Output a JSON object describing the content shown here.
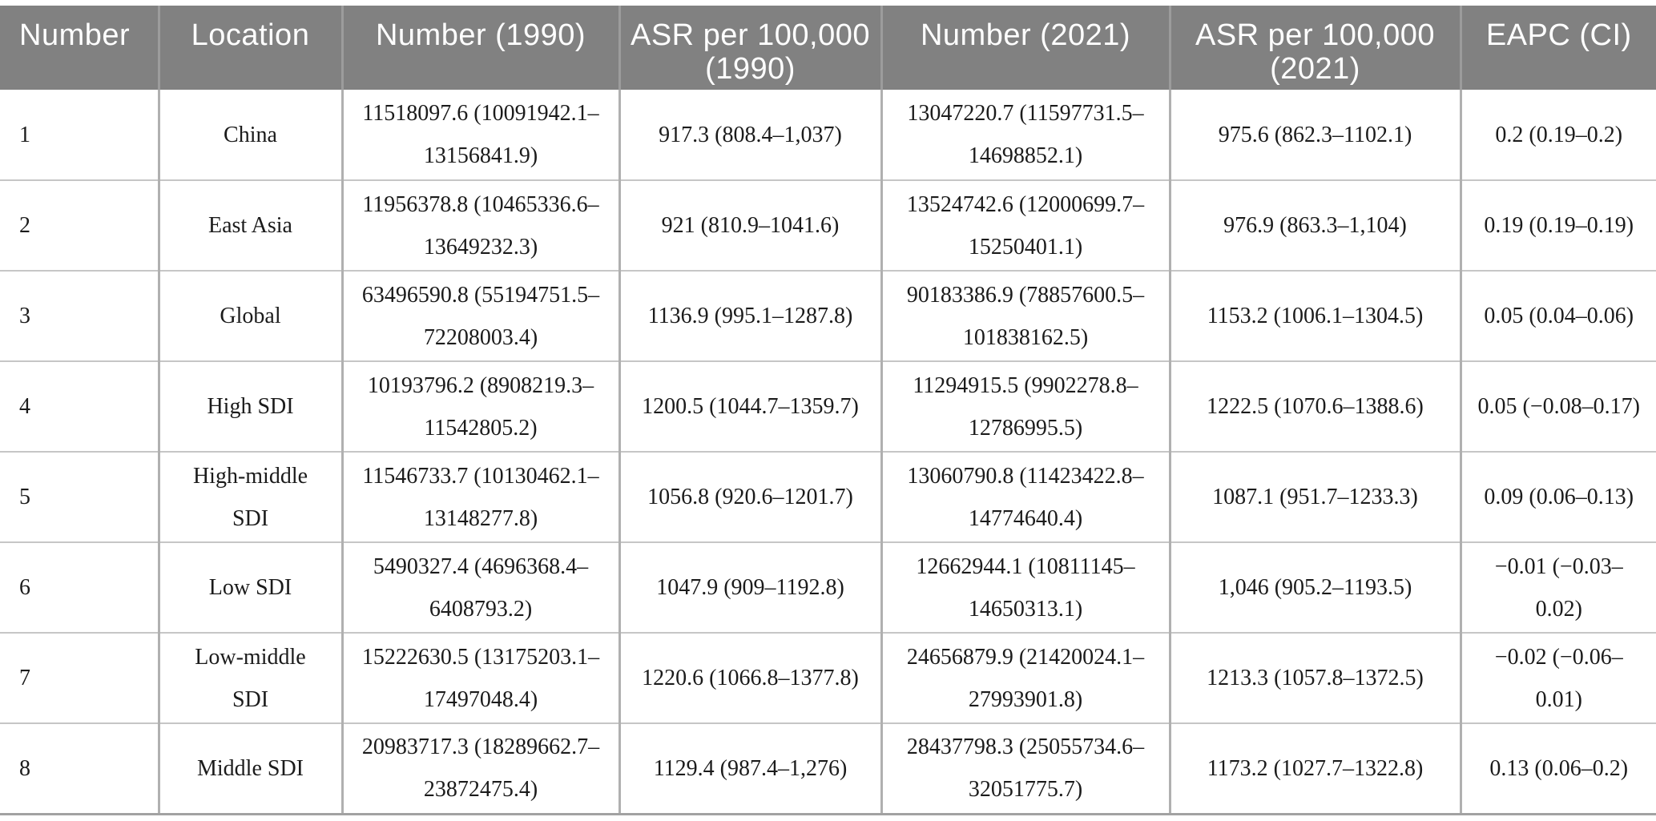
{
  "colors": {
    "header_bg": "#818181",
    "header_text": "#ffffff",
    "body_text": "#1b1b1b",
    "header_divider": "#9c9c9c",
    "column_divider": "#b0b0b0",
    "row_divider": "#c6c6c6",
    "bottom_rule": "#a2a2a2"
  },
  "table": {
    "columns": [
      {
        "key": "number",
        "label": "Number"
      },
      {
        "key": "location",
        "label": "Location"
      },
      {
        "key": "number_1990",
        "label": "Number (1990)"
      },
      {
        "key": "asr_1990",
        "label": "ASR per 100,000 (1990)"
      },
      {
        "key": "number_2021",
        "label": "Number (2021)"
      },
      {
        "key": "asr_2021",
        "label": "ASR per 100,000 (2021)"
      },
      {
        "key": "eapc",
        "label": "EAPC (CI)"
      }
    ],
    "rows": [
      {
        "number": "1",
        "location": "China",
        "number_1990": "11518097.6 (10091942.1–13156841.9)",
        "asr_1990": "917.3 (808.4–1,037)",
        "number_2021": "13047220.7 (11597731.5–14698852.1)",
        "asr_2021": "975.6 (862.3–1102.1)",
        "eapc": "0.2 (0.19–0.2)"
      },
      {
        "number": "2",
        "location": "East Asia",
        "number_1990": "11956378.8 (10465336.6–13649232.3)",
        "asr_1990": "921 (810.9–1041.6)",
        "number_2021": "13524742.6 (12000699.7–15250401.1)",
        "asr_2021": "976.9 (863.3–1,104)",
        "eapc": "0.19 (0.19–0.19)"
      },
      {
        "number": "3",
        "location": "Global",
        "number_1990": "63496590.8 (55194751.5–72208003.4)",
        "asr_1990": "1136.9 (995.1–1287.8)",
        "number_2021": "90183386.9 (78857600.5–101838162.5)",
        "asr_2021": "1153.2 (1006.1–1304.5)",
        "eapc": "0.05 (0.04–0.06)"
      },
      {
        "number": "4",
        "location": "High SDI",
        "number_1990": "10193796.2 (8908219.3–11542805.2)",
        "asr_1990": "1200.5 (1044.7–1359.7)",
        "number_2021": "11294915.5 (9902278.8–12786995.5)",
        "asr_2021": "1222.5 (1070.6–1388.6)",
        "eapc": "0.05 (−0.08–0.17)"
      },
      {
        "number": "5",
        "location": "High-middle SDI",
        "number_1990": "11546733.7 (10130462.1–13148277.8)",
        "asr_1990": "1056.8 (920.6–1201.7)",
        "number_2021": "13060790.8 (11423422.8–14774640.4)",
        "asr_2021": "1087.1 (951.7–1233.3)",
        "eapc": "0.09 (0.06–0.13)"
      },
      {
        "number": "6",
        "location": "Low SDI",
        "number_1990": "5490327.4 (4696368.4–6408793.2)",
        "asr_1990": "1047.9 (909–1192.8)",
        "number_2021": "12662944.1 (10811145–14650313.1)",
        "asr_2021": "1,046 (905.2–1193.5)",
        "eapc": "−0.01 (−0.03–0.02)"
      },
      {
        "number": "7",
        "location": "Low-middle SDI",
        "number_1990": "15222630.5 (13175203.1–17497048.4)",
        "asr_1990": "1220.6 (1066.8–1377.8)",
        "number_2021": "24656879.9 (21420024.1–27993901.8)",
        "asr_2021": "1213.3 (1057.8–1372.5)",
        "eapc": "−0.02 (−0.06–0.01)"
      },
      {
        "number": "8",
        "location": "Middle SDI",
        "number_1990": "20983717.3 (18289662.7–23872475.4)",
        "asr_1990": "1129.4 (987.4–1,276)",
        "number_2021": "28437798.3 (25055734.6–32051775.7)",
        "asr_2021": "1173.2 (1027.7–1322.8)",
        "eapc": "0.13 (0.06–0.2)"
      }
    ]
  }
}
